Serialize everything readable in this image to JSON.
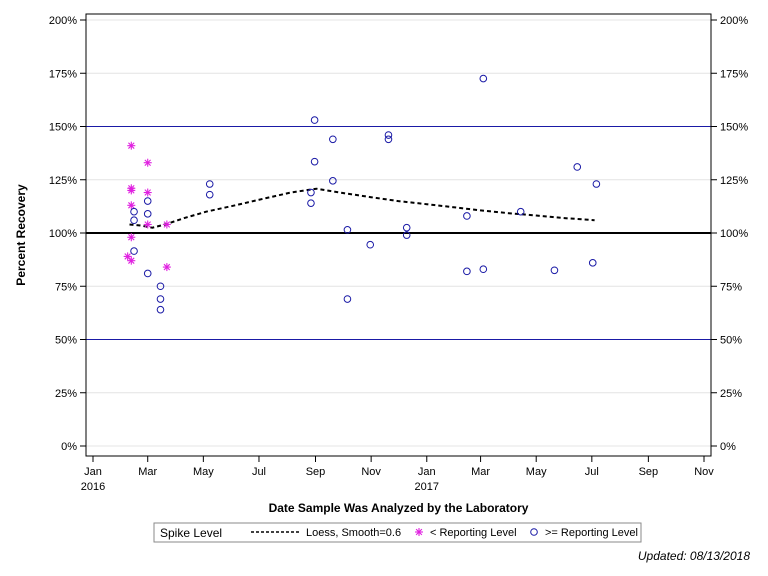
{
  "chart_data": {
    "type": "scatter",
    "xlabel": "Date Sample Was Analyzed by the Laboratory",
    "ylabel": "Percent Recovery",
    "y_unit": "%",
    "ylim": [
      0,
      200
    ],
    "y_ticks": [
      0,
      25,
      50,
      75,
      100,
      125,
      150,
      175,
      200
    ],
    "y_ticks_right": true,
    "xlim": [
      "2016-01-01",
      "2017-11-01"
    ],
    "x_ticks": [
      {
        "date": "2016-01-01",
        "label": "Jan",
        "year": "2016"
      },
      {
        "date": "2016-03-01",
        "label": "Mar",
        "year": ""
      },
      {
        "date": "2016-05-01",
        "label": "May",
        "year": ""
      },
      {
        "date": "2016-07-01",
        "label": "Jul",
        "year": ""
      },
      {
        "date": "2016-09-01",
        "label": "Sep",
        "year": ""
      },
      {
        "date": "2016-11-01",
        "label": "Nov",
        "year": ""
      },
      {
        "date": "2017-01-01",
        "label": "Jan",
        "year": "2017"
      },
      {
        "date": "2017-03-01",
        "label": "Mar",
        "year": ""
      },
      {
        "date": "2017-05-01",
        "label": "May",
        "year": ""
      },
      {
        "date": "2017-07-01",
        "label": "Jul",
        "year": ""
      },
      {
        "date": "2017-09-01",
        "label": "Sep",
        "year": ""
      },
      {
        "date": "2017-11-01",
        "label": "Nov",
        "year": ""
      }
    ],
    "grid": "horizontal",
    "reference_lines": [
      {
        "y": 100,
        "color": "#000000"
      },
      {
        "y": 150,
        "color": "#1a1aa6"
      },
      {
        "y": 50,
        "color": "#1a1aa6"
      }
    ],
    "legend_title": "Spike Level",
    "legend_position": "bottom",
    "series": [
      {
        "name": "Loess, Smooth=0.6",
        "kind": "line",
        "color": "#000000",
        "points": [
          {
            "x": "2016-02-10",
            "y": 104
          },
          {
            "x": "2016-02-22",
            "y": 103.5
          },
          {
            "x": "2016-03-06",
            "y": 102.5
          },
          {
            "x": "2016-03-20",
            "y": 104
          },
          {
            "x": "2016-04-10",
            "y": 107
          },
          {
            "x": "2016-05-04",
            "y": 110
          },
          {
            "x": "2016-06-05",
            "y": 113
          },
          {
            "x": "2016-07-05",
            "y": 116
          },
          {
            "x": "2016-08-05",
            "y": 119
          },
          {
            "x": "2016-09-02",
            "y": 120.8
          },
          {
            "x": "2016-10-01",
            "y": 118.8
          },
          {
            "x": "2016-11-01",
            "y": 116.8
          },
          {
            "x": "2016-12-01",
            "y": 115
          },
          {
            "x": "2017-01-01",
            "y": 113.5
          },
          {
            "x": "2017-02-01",
            "y": 112
          },
          {
            "x": "2017-03-01",
            "y": 110.6
          },
          {
            "x": "2017-04-01",
            "y": 109.3
          },
          {
            "x": "2017-05-01",
            "y": 108.2
          },
          {
            "x": "2017-06-01",
            "y": 107
          },
          {
            "x": "2017-07-04",
            "y": 106
          }
        ]
      },
      {
        "name": "< Reporting Level",
        "kind": "star",
        "color": "#e020e0",
        "points": [
          {
            "x": "2016-02-08",
            "y": 89
          },
          {
            "x": "2016-02-12",
            "y": 141
          },
          {
            "x": "2016-02-12",
            "y": 121
          },
          {
            "x": "2016-02-12",
            "y": 120
          },
          {
            "x": "2016-02-12",
            "y": 113
          },
          {
            "x": "2016-02-12",
            "y": 98
          },
          {
            "x": "2016-02-12",
            "y": 87
          },
          {
            "x": "2016-03-01",
            "y": 133
          },
          {
            "x": "2016-03-01",
            "y": 119
          },
          {
            "x": "2016-03-01",
            "y": 104
          },
          {
            "x": "2016-03-22",
            "y": 104
          },
          {
            "x": "2016-03-22",
            "y": 84
          }
        ]
      },
      {
        "name": ">= Reporting Level",
        "kind": "circle",
        "color": "#1a1aa6",
        "points": [
          {
            "x": "2016-02-15",
            "y": 110
          },
          {
            "x": "2016-02-15",
            "y": 106
          },
          {
            "x": "2016-02-15",
            "y": 91.5
          },
          {
            "x": "2016-03-01",
            "y": 115
          },
          {
            "x": "2016-03-01",
            "y": 109
          },
          {
            "x": "2016-03-01",
            "y": 81
          },
          {
            "x": "2016-03-15",
            "y": 75
          },
          {
            "x": "2016-03-15",
            "y": 69
          },
          {
            "x": "2016-03-15",
            "y": 64
          },
          {
            "x": "2016-05-08",
            "y": 123
          },
          {
            "x": "2016-05-08",
            "y": 118
          },
          {
            "x": "2016-08-27",
            "y": 119
          },
          {
            "x": "2016-08-27",
            "y": 114
          },
          {
            "x": "2016-08-31",
            "y": 153
          },
          {
            "x": "2016-08-31",
            "y": 133.5
          },
          {
            "x": "2016-09-20",
            "y": 144
          },
          {
            "x": "2016-09-20",
            "y": 124.5
          },
          {
            "x": "2016-10-06",
            "y": 101.5
          },
          {
            "x": "2016-10-06",
            "y": 69
          },
          {
            "x": "2016-10-31",
            "y": 94.5
          },
          {
            "x": "2016-11-20",
            "y": 146
          },
          {
            "x": "2016-11-20",
            "y": 144
          },
          {
            "x": "2016-12-10",
            "y": 102.5
          },
          {
            "x": "2016-12-10",
            "y": 99
          },
          {
            "x": "2017-02-14",
            "y": 108
          },
          {
            "x": "2017-02-14",
            "y": 82
          },
          {
            "x": "2017-03-04",
            "y": 172.5
          },
          {
            "x": "2017-03-04",
            "y": 83
          },
          {
            "x": "2017-04-14",
            "y": 110
          },
          {
            "x": "2017-05-21",
            "y": 82.5
          },
          {
            "x": "2017-06-15",
            "y": 131
          },
          {
            "x": "2017-07-02",
            "y": 86
          },
          {
            "x": "2017-07-06",
            "y": 123
          }
        ]
      }
    ]
  },
  "footer": {
    "updated": "Updated: 08/13/2018"
  }
}
